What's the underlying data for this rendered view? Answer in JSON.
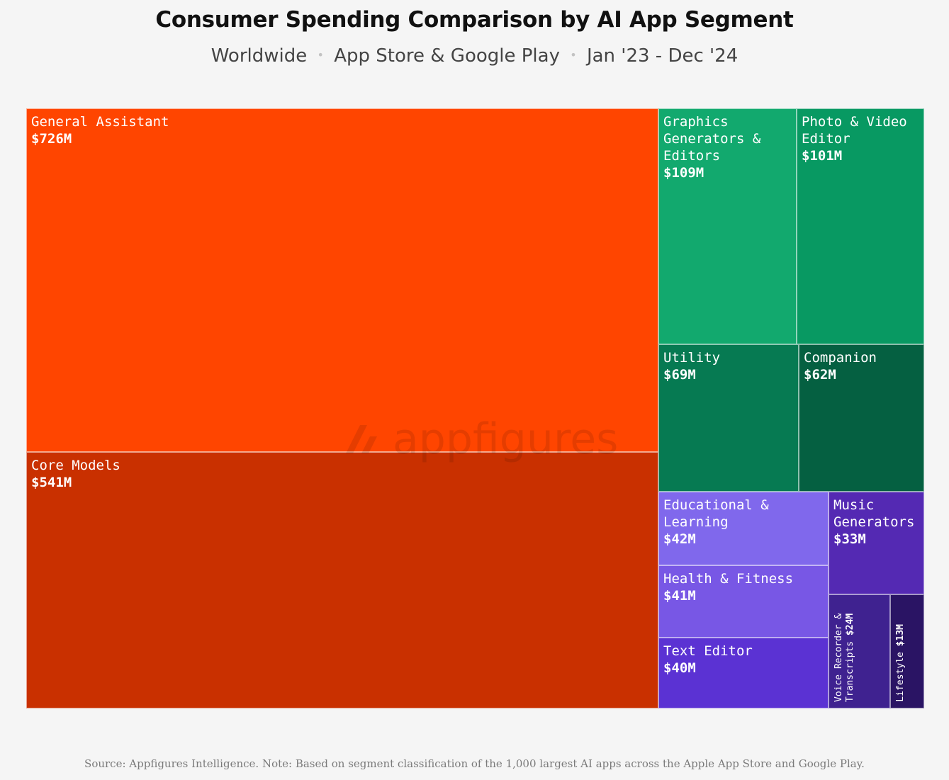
{
  "title": "Consumer Spending Comparison by AI App Segment",
  "subtitle": {
    "part1": "Worldwide",
    "part2": "App Store & Google Play",
    "part3": "Jan '23 - Dec '24",
    "separator": "•"
  },
  "watermark": "appfigures",
  "source": "Source: Appfigures Intelligence.  Note: Based on segment classification of the 1,000 largest AI apps across the Apple App Store and Google Play.",
  "chart_data": {
    "type": "treemap",
    "unit": "USD millions",
    "items": [
      {
        "name": "General Assistant",
        "value": 726,
        "label": "$726M",
        "color": "#ff4500"
      },
      {
        "name": "Core Models",
        "value": 541,
        "label": "$541M",
        "color": "#c93000"
      },
      {
        "name": "Graphics Generators & Editors",
        "value": 109,
        "label": "$109M",
        "color": "#12a96e"
      },
      {
        "name": "Photo & Video Editor",
        "value": 101,
        "label": "$101M",
        "color": "#089962"
      },
      {
        "name": "Utility",
        "value": 69,
        "label": "$69M",
        "color": "#067a52"
      },
      {
        "name": "Companion",
        "value": 62,
        "label": "$62M",
        "color": "#056041"
      },
      {
        "name": "Educational & Learning",
        "value": 42,
        "label": "$42M",
        "color": "#8068ec"
      },
      {
        "name": "Health & Fitness",
        "value": 41,
        "label": "$41M",
        "color": "#7857e5"
      },
      {
        "name": "Text Editor",
        "value": 40,
        "label": "$40M",
        "color": "#5b32d3"
      },
      {
        "name": "Music Generators",
        "value": 33,
        "label": "$33M",
        "color": "#5429b3"
      },
      {
        "name": "Voice Recorder & Transcripts",
        "value": 24,
        "label": "$24M",
        "color": "#3f2290"
      },
      {
        "name": "Lifestyle",
        "value": 13,
        "label": "$13M",
        "color": "#2a1464"
      }
    ]
  }
}
